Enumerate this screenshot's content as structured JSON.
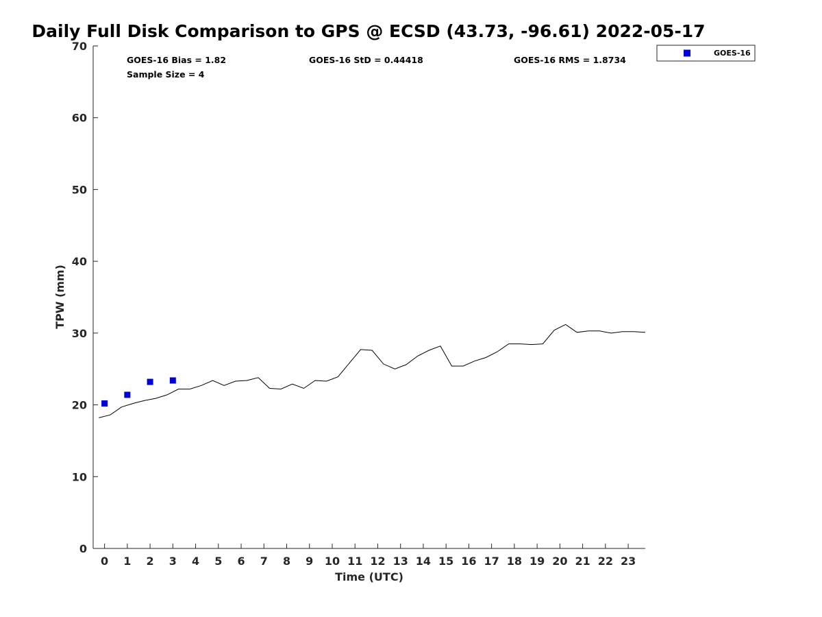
{
  "colors": {
    "goes16": "#0000d9",
    "gps_line": "#000000",
    "axis": "#262626"
  },
  "legend": {
    "label": "GOES-16",
    "marker": "square",
    "placement": "top-right-outside"
  },
  "stats": {
    "bias": "GOES-16 Bias = 1.82",
    "std": "GOES-16 StD = 0.44418",
    "rms": "GOES-16 RMS = 1.8734",
    "sample": "Sample Size = 4"
  },
  "chart_data": {
    "type": "line",
    "title": "Daily Full Disk Comparison to GPS @ ECSD (43.73, -96.61) 2022-05-17",
    "xlabel": "Time (UTC)",
    "ylabel": "TPW (mm)",
    "xlim": [
      -0.5,
      23.75
    ],
    "ylim": [
      0,
      70
    ],
    "xticks": [
      0,
      1,
      2,
      3,
      4,
      5,
      6,
      7,
      8,
      9,
      10,
      11,
      12,
      13,
      14,
      15,
      16,
      17,
      18,
      19,
      20,
      21,
      22,
      23
    ],
    "yticks": [
      0,
      10,
      20,
      30,
      40,
      50,
      60,
      70
    ],
    "grid": false,
    "series": [
      {
        "name": "GPS",
        "kind": "line",
        "x": [
          -0.25,
          0.25,
          0.75,
          1.25,
          1.75,
          2.25,
          2.75,
          3.25,
          3.75,
          4.25,
          4.75,
          5.25,
          5.75,
          6.25,
          6.75,
          7.25,
          7.75,
          8.25,
          8.75,
          9.25,
          9.75,
          10.25,
          10.75,
          11.25,
          11.75,
          12.25,
          12.75,
          13.25,
          13.75,
          14.25,
          14.75,
          15.25,
          15.75,
          16.25,
          16.75,
          17.25,
          17.75,
          18.25,
          18.75,
          19.25,
          19.75,
          20.25,
          20.75,
          21.25,
          21.75,
          22.25,
          22.75,
          23.25,
          23.75
        ],
        "y": [
          18.2,
          18.6,
          19.7,
          20.2,
          20.6,
          20.9,
          21.4,
          22.2,
          22.2,
          22.7,
          23.4,
          22.7,
          23.3,
          23.4,
          23.8,
          22.3,
          22.2,
          22.9,
          22.3,
          23.4,
          23.3,
          23.9,
          25.8,
          27.7,
          27.6,
          25.7,
          25.0,
          25.6,
          26.8,
          27.6,
          28.2,
          25.4,
          25.4,
          26.1,
          26.6,
          27.4,
          28.5,
          28.5,
          28.4,
          28.5,
          30.4,
          31.2,
          30.1,
          30.3,
          30.3,
          30.0,
          30.2,
          30.2,
          30.1
        ]
      },
      {
        "name": "GOES-16",
        "kind": "scatter",
        "x": [
          0,
          1,
          2,
          3
        ],
        "y": [
          20.2,
          21.4,
          23.2,
          23.4
        ]
      }
    ]
  }
}
